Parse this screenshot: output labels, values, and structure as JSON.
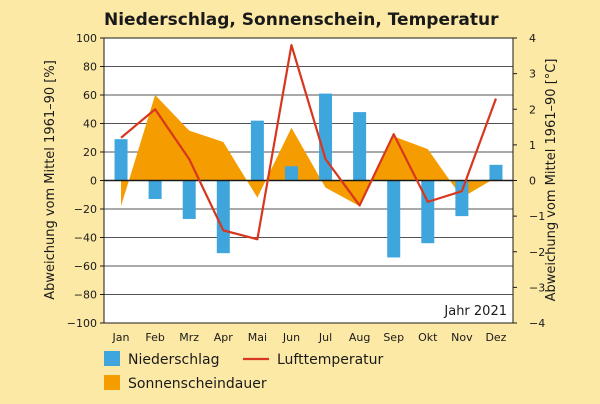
{
  "chart_data": {
    "type": "bar+area+line",
    "title": "Niederschlag, Sonnenschein, Temperatur",
    "ylabel_left": "Abweichung vom Mittel 1961–90 [%]",
    "ylabel_right": "Abweichung vom Mittel 1961–90 [°C]",
    "annotation": "Jahr 2021",
    "ylim_left": [
      -100,
      100
    ],
    "yticks_left": [
      -100,
      -80,
      -60,
      -40,
      -20,
      0,
      20,
      40,
      60,
      80,
      100
    ],
    "ylim_right": [
      -4,
      4
    ],
    "yticks_right": [
      -4,
      -3,
      -2,
      -1,
      0,
      1,
      2,
      3,
      4
    ],
    "grid": true,
    "categories": [
      "Jan",
      "Feb",
      "Mrz",
      "Apr",
      "Mai",
      "Jun",
      "Jul",
      "Aug",
      "Sep",
      "Okt",
      "Nov",
      "Dez"
    ],
    "series": [
      {
        "name": "Niederschlag",
        "kind": "bar",
        "axis": "left",
        "color": "#3fa6dd",
        "values": [
          29,
          -13,
          -27,
          -51,
          42,
          10,
          61,
          48,
          -54,
          -44,
          -25,
          11
        ]
      },
      {
        "name": "Sonnenscheindauer",
        "kind": "area",
        "axis": "left",
        "color": "#f59c00",
        "values": [
          -18,
          60,
          35,
          27,
          -12,
          37,
          -5,
          -18,
          31,
          22,
          -12,
          2
        ]
      },
      {
        "name": "Lufttemperatur",
        "kind": "line",
        "axis": "right",
        "color": "#d8371f",
        "values": [
          1.2,
          2.0,
          0.6,
          -1.4,
          -1.65,
          3.8,
          0.6,
          -0.7,
          1.3,
          -0.6,
          -0.3,
          2.3
        ]
      }
    ],
    "legend": [
      {
        "label": "Niederschlag",
        "kind": "bar",
        "color": "#3fa6dd"
      },
      {
        "label": "Lufttemperatur",
        "kind": "line",
        "color": "#d8371f"
      },
      {
        "label": "Sonnenscheindauer",
        "kind": "area",
        "color": "#f59c00"
      }
    ]
  }
}
